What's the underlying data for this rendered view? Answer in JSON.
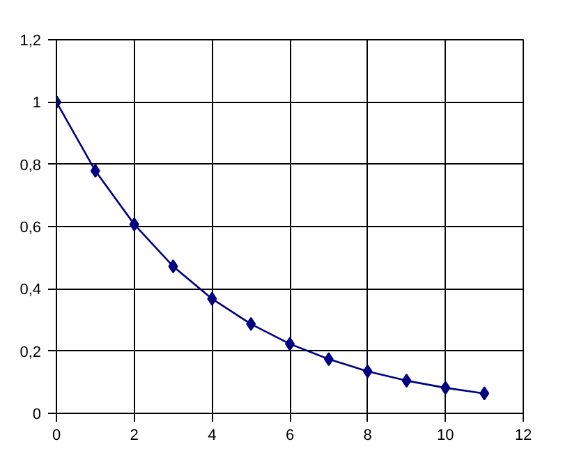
{
  "chart_data": {
    "type": "line",
    "x": [
      0,
      1,
      2,
      3,
      4,
      5,
      6,
      7,
      8,
      9,
      10,
      11
    ],
    "series": [
      {
        "color": "#000080",
        "values": [
          1,
          0.779,
          0.607,
          0.472,
          0.368,
          0.287,
          0.223,
          0.174,
          0.135,
          0.105,
          0.082,
          0.064
        ]
      }
    ],
    "xlim": [
      0,
      12
    ],
    "xticks": [
      0,
      2,
      4,
      6,
      8,
      10,
      12
    ],
    "ylim": [
      0,
      1.2
    ],
    "yticks": [
      0,
      {
        "value": 0.2,
        "label": "0,2"
      },
      {
        "value": 0.4,
        "label": "0,4"
      },
      {
        "value": 0.6,
        "label": "0,6"
      },
      {
        "value": 0.8,
        "label": "0,8"
      },
      1,
      {
        "value": 1.2,
        "label": "1,2"
      }
    ],
    "grid": true,
    "marker": "diamond",
    "line_style": "solid"
  }
}
